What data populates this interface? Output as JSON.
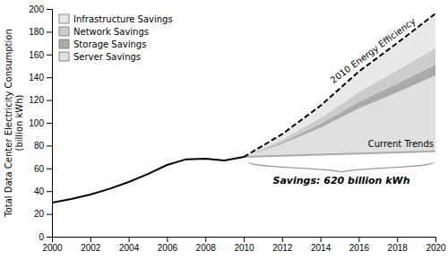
{
  "chart_data": {
    "type": "line",
    "y_label": "Total Data Center Electricity Consumption\n(billion kWh)",
    "xlim": [
      2000,
      2020
    ],
    "ylim": [
      0,
      200
    ],
    "xticks": [
      2000,
      2002,
      2004,
      2006,
      2008,
      2010,
      2012,
      2014,
      2016,
      2018,
      2020
    ],
    "yticks": [
      0,
      20,
      40,
      60,
      80,
      100,
      120,
      140,
      160,
      180,
      200
    ],
    "grid": false,
    "legend": "upper left",
    "stacked": true,
    "annotation": "Savings: 620 billion kWh",
    "series": [
      {
        "type": "line",
        "color": "#000000",
        "line_style": "solid",
        "x": [
          2000,
          2001,
          2002,
          2003,
          2004,
          2005,
          2006,
          2007,
          2008,
          2009,
          2010
        ],
        "values": [
          30,
          33,
          37,
          42,
          48,
          55,
          63,
          68,
          68.5,
          67,
          70
        ]
      },
      {
        "name": "Current Trends",
        "type": "line",
        "color": "#aaaaaa",
        "line_style": "solid",
        "x": [
          2010,
          2012,
          2014,
          2016,
          2018,
          2020
        ],
        "values": [
          70,
          71,
          72,
          73,
          74,
          75
        ]
      },
      {
        "name": "Server Savings",
        "type": "area",
        "color": "#e0e0e0",
        "x": [
          2010,
          2012,
          2014,
          2016,
          2018,
          2020
        ],
        "values": [
          0,
          10.45,
          23.65,
          39.6,
          52.8,
          66.55
        ]
      },
      {
        "name": "Storage Savings",
        "type": "area",
        "color": "#aaaaaa",
        "x": [
          2010,
          2012,
          2014,
          2016,
          2018,
          2020
        ],
        "values": [
          0,
          1.52,
          3.44,
          5.76,
          7.68,
          9.68
        ]
      },
      {
        "name": "Network Savings",
        "type": "area",
        "color": "#cccccc",
        "x": [
          2010,
          2012,
          2014,
          2016,
          2018,
          2020
        ],
        "values": [
          0,
          2.28,
          5.16,
          8.64,
          11.52,
          14.52
        ]
      },
      {
        "name": "Infrastructure Savings",
        "type": "area",
        "color": "#e8e8e8",
        "x": [
          2010,
          2012,
          2014,
          2016,
          2018,
          2020
        ],
        "values": [
          0,
          4.75,
          10.75,
          18,
          24,
          30.25
        ]
      },
      {
        "name": "2010 Energy Efficiency",
        "type": "line",
        "color": "#000000",
        "line_style": "dashed",
        "x": [
          2010,
          2012,
          2014,
          2016,
          2018,
          2020
        ],
        "values": [
          70,
          90,
          115,
          145,
          170,
          196
        ]
      }
    ]
  }
}
